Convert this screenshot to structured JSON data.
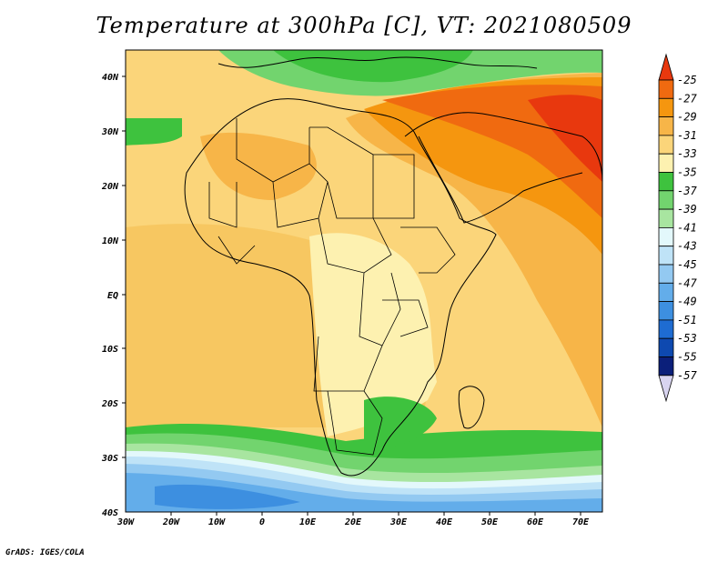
{
  "title": "Temperature at 300hPa [C], VT: 2021080509",
  "credit": "GrADS: IGES/COLA",
  "map": {
    "region": "Africa and Arabian Peninsula",
    "lon_range": [
      -30,
      75
    ],
    "lat_range": [
      -40,
      45
    ],
    "lat_ticks": [
      "40N",
      "30N",
      "20N",
      "10N",
      "EQ",
      "10S",
      "20S",
      "30S",
      "40S"
    ],
    "lon_ticks": [
      "30W",
      "20W",
      "10W",
      "0",
      "10E",
      "20E",
      "30E",
      "40E",
      "50E",
      "60E",
      "70E"
    ]
  },
  "colorbar": {
    "levels": [
      "-25",
      "-27",
      "-29",
      "-31",
      "-33",
      "-35",
      "-37",
      "-39",
      "-41",
      "-43",
      "-45",
      "-47",
      "-49",
      "-51",
      "-53",
      "-55",
      "-57"
    ],
    "colors": [
      "#e8380e",
      "#f06a10",
      "#f5960f",
      "#f7b548",
      "#fbd57a",
      "#fdf1b0",
      "#3ec23e",
      "#72d46e",
      "#a8e5a0",
      "#e3f8fb",
      "#bfe3f7",
      "#93c9f1",
      "#63adea",
      "#3d8fe0",
      "#1e6cd2",
      "#0e49b0",
      "#0b1f7a",
      "#d8d4f0"
    ]
  }
}
